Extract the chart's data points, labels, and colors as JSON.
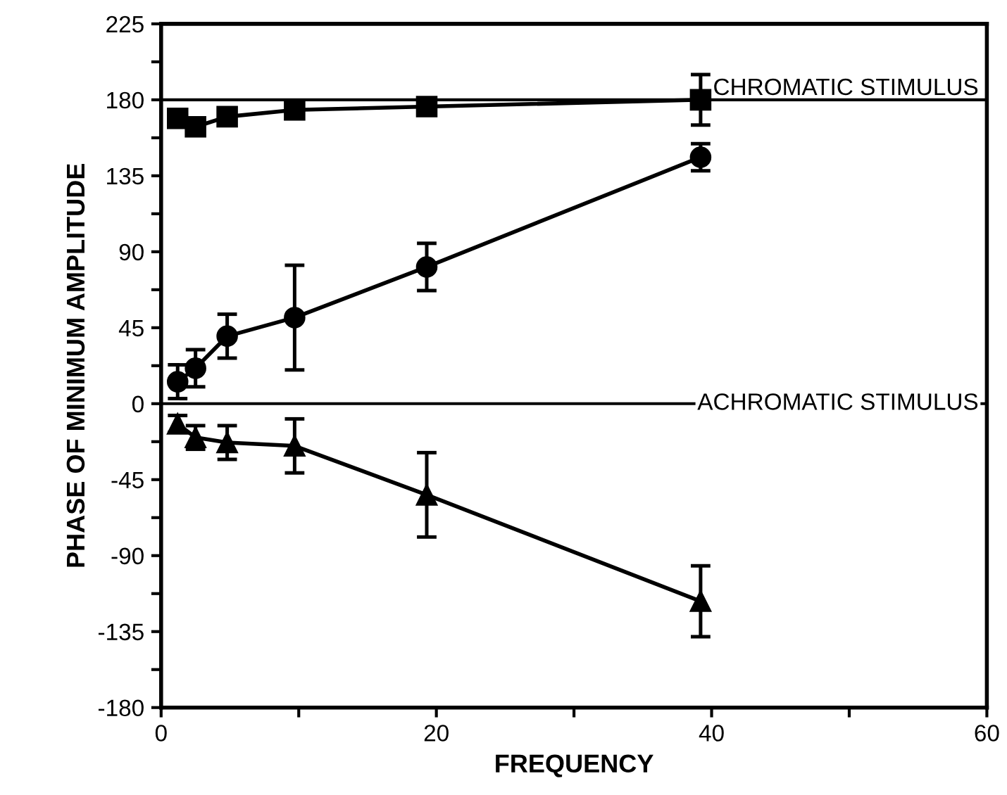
{
  "chart_data": {
    "type": "line",
    "xlabel": "FREQUENCY",
    "ylabel": "PHASE OF MINIMUM AMPLITUDE",
    "xlim": [
      0,
      60
    ],
    "ylim": [
      -180,
      225
    ],
    "xticks": [
      0,
      {
        "value": 10,
        "label": null
      },
      20,
      {
        "value": 30,
        "label": null
      },
      40,
      {
        "value": 50,
        "label": null
      },
      60
    ],
    "yticks": [
      -180,
      {
        "value": -157.5,
        "label": null
      },
      -135,
      {
        "value": -112.5,
        "label": null
      },
      -90,
      {
        "value": -67.5,
        "label": null
      },
      -45,
      {
        "value": -22.5,
        "label": null
      },
      0,
      {
        "value": 22.5,
        "label": null
      },
      45,
      {
        "value": 67.5,
        "label": null
      },
      90,
      {
        "value": 112.5,
        "label": null
      },
      135,
      {
        "value": 157.5,
        "label": null
      },
      180,
      {
        "value": 202.5,
        "label": null
      },
      225
    ],
    "grid": false,
    "legend": false,
    "line_style": "solid",
    "ref_lines": [
      {
        "axis": "y",
        "value": 180,
        "label": "CHROMATIC STIMULUS",
        "color": "#000000"
      },
      {
        "axis": "y",
        "value": 0,
        "label": "ACHROMATIC STIMULUS",
        "color": "#000000"
      }
    ],
    "series": [
      {
        "color": "#000000",
        "marker": "square",
        "x": [
          1.2,
          2.5,
          4.8,
          9.7,
          19.3,
          39.2
        ],
        "values": [
          169,
          164,
          170,
          174,
          176,
          180
        ],
        "errors": [
          null,
          null,
          null,
          null,
          null,
          15
        ]
      },
      {
        "color": "#000000",
        "marker": "circle",
        "x": [
          1.2,
          2.5,
          4.8,
          9.7,
          19.3,
          39.2
        ],
        "values": [
          13,
          21,
          40,
          51,
          81,
          146
        ],
        "errors": [
          10,
          11,
          13,
          31,
          14,
          8
        ]
      },
      {
        "color": "#000000",
        "marker": "triangle",
        "x": [
          1.2,
          2.5,
          4.8,
          9.7,
          19.3,
          39.2
        ],
        "values": [
          -12,
          -20,
          -23,
          -25,
          -54,
          -117
        ],
        "errors": [
          5,
          7,
          10,
          16,
          25,
          21
        ]
      }
    ]
  }
}
